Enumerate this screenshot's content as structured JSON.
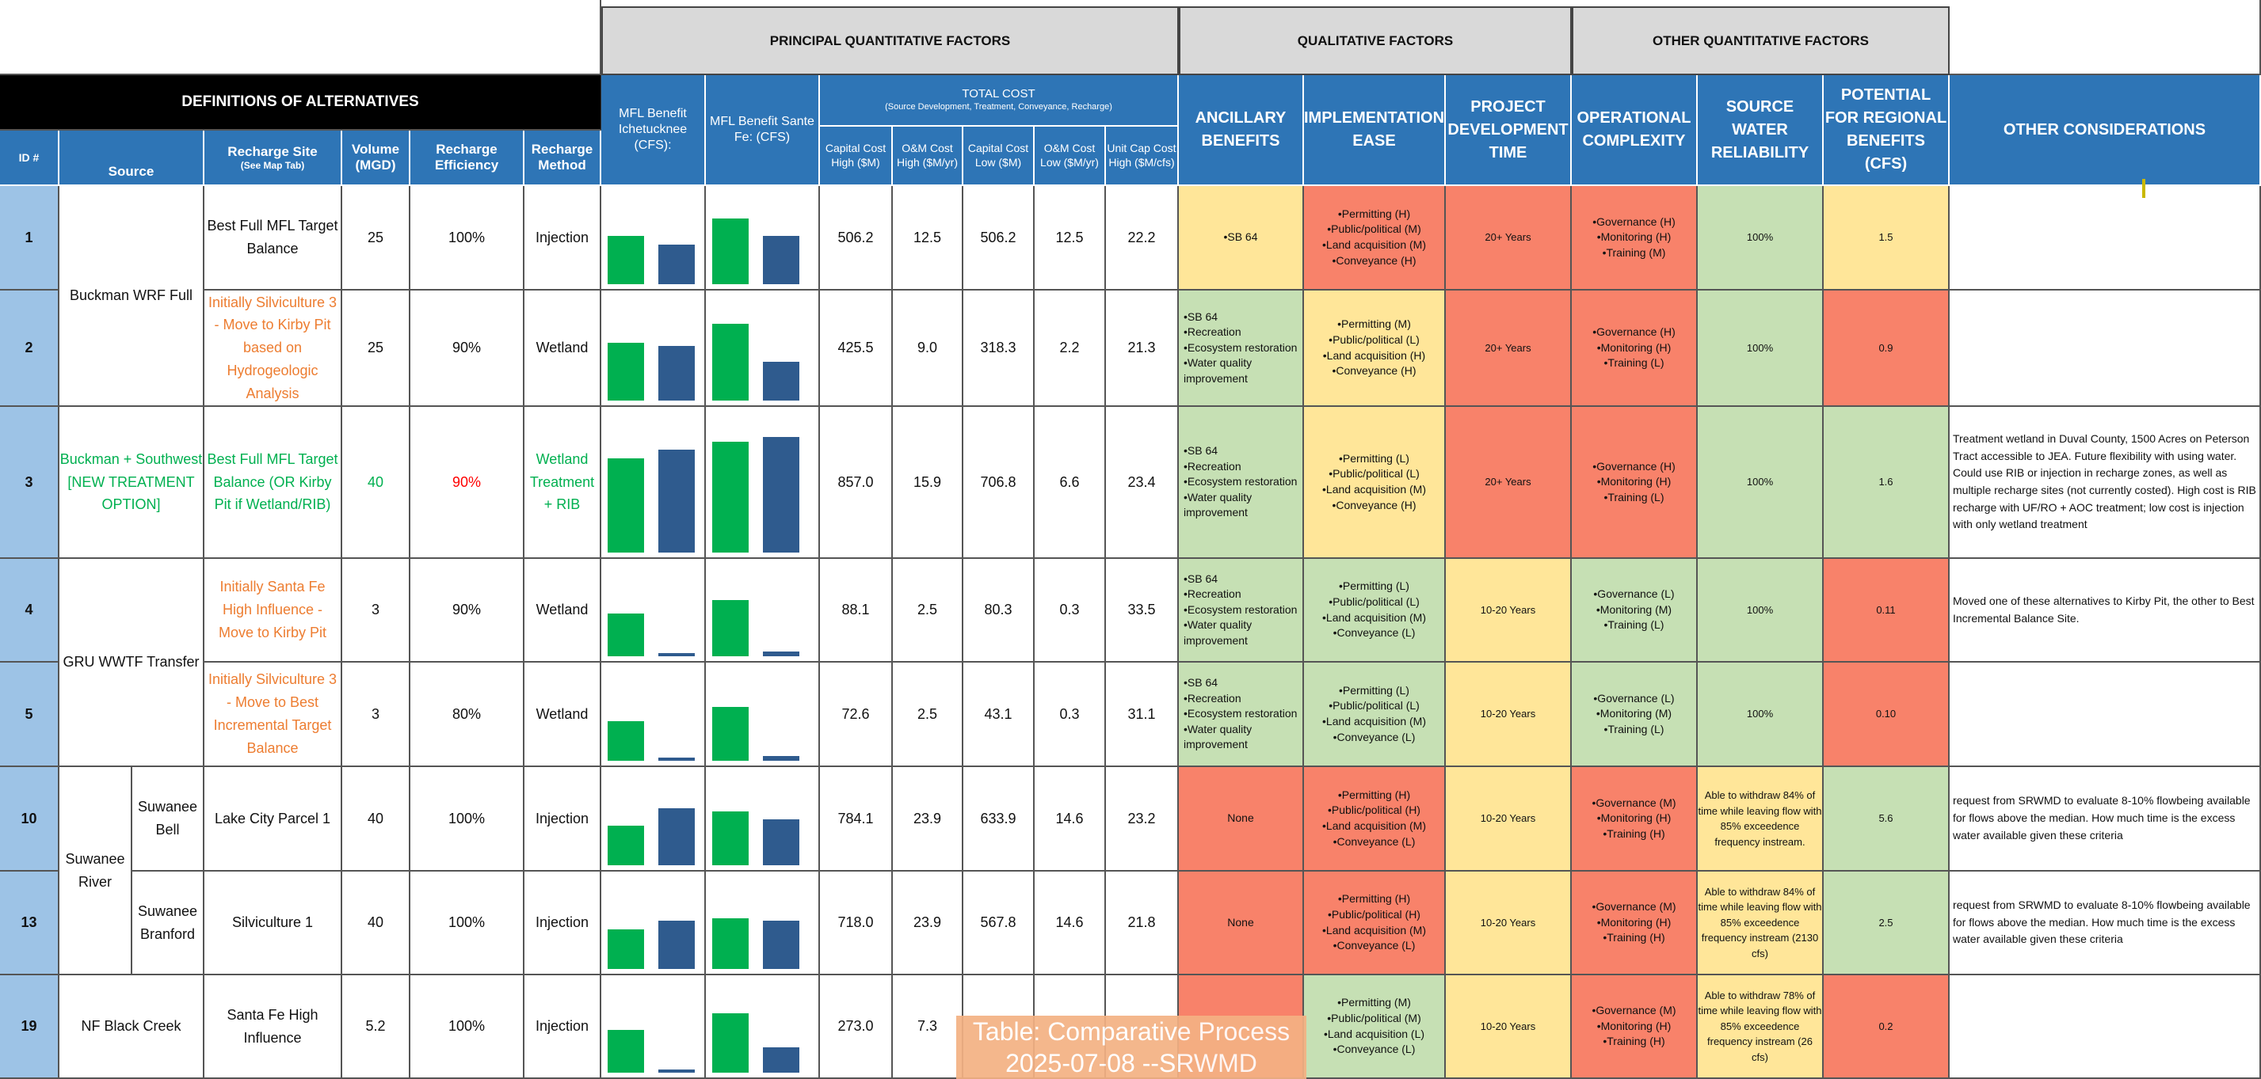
{
  "groups": {
    "principal": "PRINCIPAL QUANTITATIVE FACTORS",
    "qualitative": "QUALITATIVE FACTORS",
    "other": "OTHER QUANTITATIVE FACTORS"
  },
  "definitions_title": "DEFINITIONS OF ALTERNATIVES",
  "headers": {
    "id": "ID #",
    "source": "Source",
    "recharge_site": "Recharge Site",
    "recharge_site_sub": "(See Map Tab)",
    "volume": "Volume (MGD)",
    "efficiency": "Recharge Efficiency",
    "method": "Recharge Method",
    "mfl_ich": "MFL Benefit Ichetucknee (CFS):",
    "mfl_sf": "MFL Benefit Sante Fe: (CFS)",
    "total_cost": "TOTAL COST",
    "total_cost_sub": "(Source Development, Treatment, Conveyance, Recharge)",
    "cap_high": "Capital Cost High ($M)",
    "om_high": "O&M Cost High ($M/yr)",
    "cap_low": "Capital Cost Low ($M)",
    "om_low": "O&M Cost Low ($M/yr)",
    "unit_cap": "Unit Cap Cost High ($M/cfs)",
    "ancillary": "ANCILLARY BENEFITS",
    "implementation": "IMPLEMENTATION EASE",
    "project_time": "PROJECT DEVELOPMENT TIME",
    "operational": "OPERATIONAL COMPLEXITY",
    "reliability": "SOURCE WATER RELIABILITY",
    "regional": "POTENTIAL FOR REGIONAL BENEFITS (CFS)",
    "considerations": "OTHER CONSIDERATIONS"
  },
  "sources": {
    "buckman": "Buckman WRF Full",
    "buckman_sw": "Buckman + Southwest [NEW TREATMENT OPTION]",
    "gru": "GRU WWTF Transfer",
    "suwanee_river": "Suwanee River",
    "suwanee_bell": "Suwanee Bell",
    "suwanee_branford": "Suwanee Branford",
    "nf_black_creek": "NF Black Creek"
  },
  "rows": [
    {
      "id": "1",
      "site": "Best Full MFL Target Balance",
      "volume": "25",
      "efficiency": "100%",
      "method": "Injection",
      "ich": 0.85,
      "sf": 0.7,
      "ich_sf": 1.15,
      "sf2": 0.85,
      "cap_high": "506.2",
      "om_high": "12.5",
      "cap_low": "506.2",
      "om_low": "12.5",
      "unit_cap": "22.2",
      "ancillary": "•SB 64",
      "impl": "•Permitting (H) •Public/political (M) •Land acquisition (M) •Conveyance (H)",
      "time": "20+ Years",
      "ops": "•Governance (H) •Monitoring (H) •Training (M)",
      "reliability": "100%",
      "regional": "1.5",
      "other": ""
    },
    {
      "id": "2",
      "site": "Initially Silviculture 3 - Move to Kirby Pit based on Hydrogeologic Analysis",
      "volume": "25",
      "efficiency": "90%",
      "method": "Wetland",
      "ich": 0.9,
      "sf": 0.85,
      "ich_sf": 1.2,
      "sf2": 0.6,
      "cap_high": "425.5",
      "om_high": "9.0",
      "cap_low": "318.3",
      "om_low": "2.2",
      "unit_cap": "21.3",
      "ancillary": "•SB 64 •Recreation •Ecosystem restoration •Water quality improvement",
      "impl": "•Permitting (M) •Public/political (L) •Land acquisition (H) •Conveyance (H)",
      "time": "20+ Years",
      "ops": "•Governance (H) •Monitoring (H) •Training (L)",
      "reliability": "100%",
      "regional": "0.9",
      "other": ""
    },
    {
      "id": "3",
      "site": "Best Full MFL Target Balance (OR Kirby Pit if Wetland/RIB)",
      "volume": "40",
      "efficiency": "90%",
      "method": "Wetland Treatment + RIB",
      "ich": 1.1,
      "sf": 1.2,
      "ich_sf": 1.3,
      "sf2": 1.35,
      "cap_high": "857.0",
      "om_high": "15.9",
      "cap_low": "706.8",
      "om_low": "6.6",
      "unit_cap": "23.4",
      "ancillary": "•SB 64 •Recreation •Ecosystem restoration •Water quality improvement",
      "impl": "•Permitting (L) •Public/political (L) •Land acquisition (M) •Conveyance (H)",
      "time": "20+ Years",
      "ops": "•Governance (H) •Monitoring (H) •Training (L)",
      "reliability": "100%",
      "regional": "1.6",
      "other": "Treatment wetland in Duval County, 1500 Acres on Peterson Tract accessible to JEA. Future flexibility with using water. Could use RIB or injection in recharge zones, as well as multiple recharge sites (not currently costed). High cost is RIB recharge with UF/RO + AOC treatment; low cost is injection with only wetland treatment"
    },
    {
      "id": "4",
      "site": "Initially Santa Fe High Influence - Move to Kirby Pit",
      "volume": "3",
      "efficiency": "90%",
      "method": "Wetland",
      "ich": 0.75,
      "sf": 0.05,
      "ich_sf": 1.0,
      "sf2": 0.08,
      "cap_high": "88.1",
      "om_high": "2.5",
      "cap_low": "80.3",
      "om_low": "0.3",
      "unit_cap": "33.5",
      "ancillary": "•SB 64 •Recreation •Ecosystem restoration •Water quality improvement",
      "impl": "•Permitting (L) •Public/political (L) •Land acquisition (M) •Conveyance (L)",
      "time": "10-20 Years",
      "ops": "•Governance (L) •Monitoring (M) •Training (L)",
      "reliability": "100%",
      "regional": "0.11",
      "other": "Moved one of these alternatives to Kirby Pit, the other to Best Incremental Balance Site."
    },
    {
      "id": "5",
      "site": "Initially Silviculture 3 - Move to Best Incremental Target Balance",
      "volume": "3",
      "efficiency": "80%",
      "method": "Wetland",
      "ich": 0.7,
      "sf": 0.06,
      "ich_sf": 0.95,
      "sf2": 0.08,
      "cap_high": "72.6",
      "om_high": "2.5",
      "cap_low": "43.1",
      "om_low": "0.3",
      "unit_cap": "31.1",
      "ancillary": "•SB 64 •Recreation •Ecosystem restoration •Water quality improvement",
      "impl": "•Permitting (L) •Public/political (L) •Land acquisition (M) •Conveyance (L)",
      "time": "10-20 Years",
      "ops": "•Governance (L) •Monitoring (M) •Training (L)",
      "reliability": "100%",
      "regional": "0.10",
      "other": ""
    },
    {
      "id": "10",
      "site": "Lake City Parcel 1",
      "volume": "40",
      "efficiency": "100%",
      "method": "Injection",
      "ich": 0.7,
      "sf": 1.0,
      "ich_sf": 0.95,
      "sf2": 0.8,
      "cap_high": "784.1",
      "om_high": "23.9",
      "cap_low": "633.9",
      "om_low": "14.6",
      "unit_cap": "23.2",
      "ancillary": "None",
      "impl": "•Permitting (H) •Public/political (H) •Land acquisition (M) •Conveyance (L)",
      "time": "10-20 Years",
      "ops": "•Governance (M) •Monitoring (H) •Training (H)",
      "reliability": "Able to withdraw 84% of time while leaving flow with 85% exceedence frequency instream.",
      "regional": "5.6",
      "other": "request from SRWMD to evaluate 8-10% flowbeing available for flows above the median. How much time is the excess water available given these criteria"
    },
    {
      "id": "13",
      "site": "Silviculture 1",
      "volume": "40",
      "efficiency": "100%",
      "method": "Injection",
      "ich": 0.7,
      "sf": 0.85,
      "ich_sf": 0.9,
      "sf2": 0.85,
      "cap_high": "718.0",
      "om_high": "23.9",
      "cap_low": "567.8",
      "om_low": "14.6",
      "unit_cap": "21.8",
      "ancillary": "None",
      "impl": "•Permitting (H) •Public/political (H) •Land acquisition (M) •Conveyance (L)",
      "time": "10-20 Years",
      "ops": "•Governance (M) •Monitoring (H) •Training (H)",
      "reliability": "Able to withdraw 84% of time while leaving flow with 85% exceedence frequency instream (2130 cfs)",
      "regional": "2.5",
      "other": "request from SRWMD to evaluate 8-10% flowbeing available for flows above the median. How much time is the excess water available given these criteria"
    },
    {
      "id": "19",
      "site": "Santa Fe High Influence",
      "volume": "5.2",
      "efficiency": "100%",
      "method": "Injection",
      "ich": 0.75,
      "sf": 0.05,
      "ich_sf": 1.05,
      "sf2": 0.45,
      "cap_high": "273.0",
      "om_high": "7.3",
      "cap_low": "",
      "om_low": "",
      "unit_cap": "",
      "ancillary": "",
      "impl": "•Permitting (M) •Public/political (M) •Land acquisition (L) •Conveyance (L)",
      "time": "10-20 Years",
      "ops": "•Governance (M) •Monitoring (H) •Training (H)",
      "reliability": "Able to withdraw 78% of time while leaving flow with 85% exceedence frequency instream (26 cfs)",
      "regional": "0.2",
      "other": ""
    }
  ],
  "colors": {
    "green_bar": "#00b050",
    "blue_bar": "#2f5b8e",
    "good": "#c6e0b4",
    "medium": "#ffe699",
    "poor": "#f8826a",
    "header_blue": "#2e75b6",
    "id_blue": "#9dc3e6"
  },
  "stamp": {
    "line1": "Table: Comparative Process",
    "line2": "2025-07-08 --SRWMD"
  }
}
